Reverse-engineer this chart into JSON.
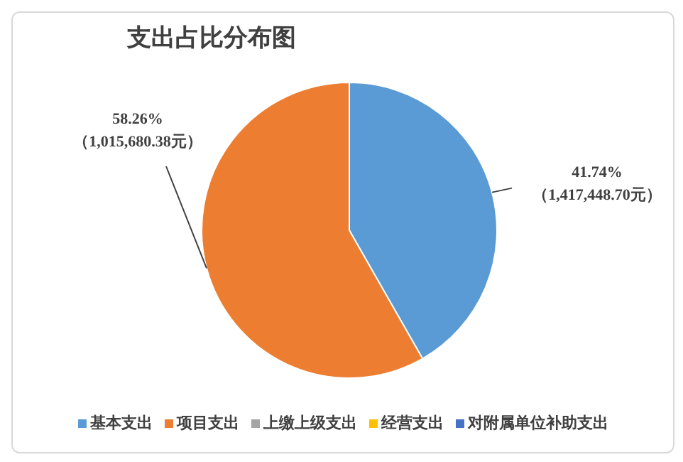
{
  "chart_data": {
    "type": "pie",
    "title": "支出占比分布图",
    "categories": [
      "基本支出",
      "项目支出",
      "上缴上级支出",
      "经营支出",
      "对附属单位补助支出"
    ],
    "values": [
      41.74,
      58.26,
      0,
      0,
      0
    ],
    "colors": [
      "#5b9bd5",
      "#ed7d31",
      "#a5a5a5",
      "#ffc000",
      "#4472c4"
    ],
    "value_labels": [
      "41.74%\n（1,417,448.70元）",
      "58.26%\n（1,015,680.38元）",
      null,
      null,
      null
    ],
    "legend": "bottom"
  }
}
